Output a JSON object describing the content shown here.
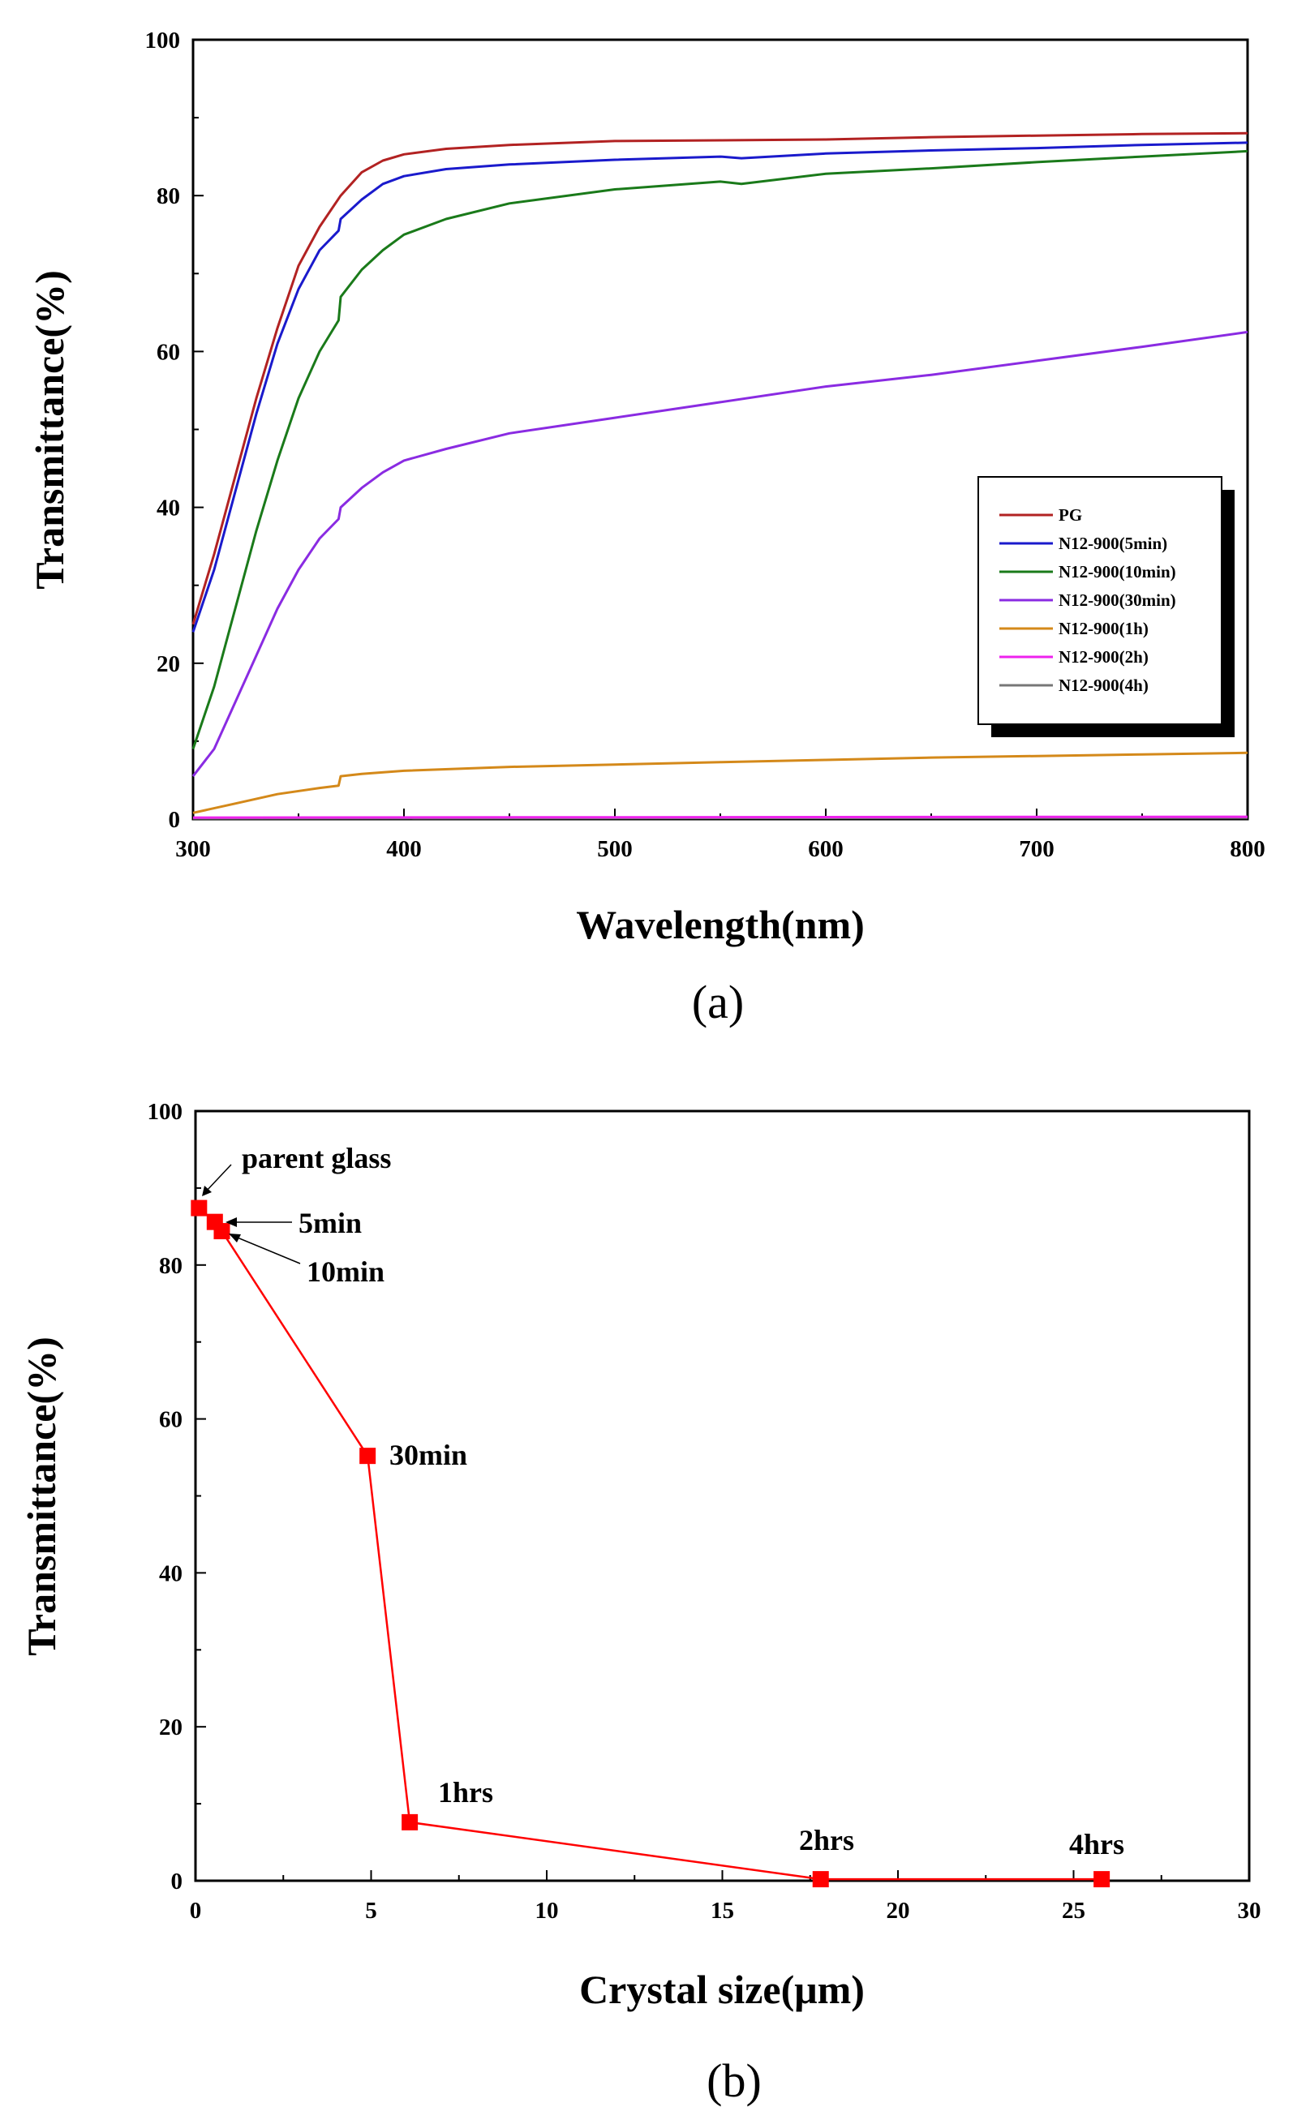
{
  "chart_data": [
    {
      "type": "line",
      "panel_label": "(a)",
      "xlabel": "Wavelength(nm)",
      "ylabel": "Transmittance(%)",
      "xlim": [
        300,
        800
      ],
      "ylim": [
        0,
        100
      ],
      "xticks": [
        300,
        400,
        500,
        600,
        700,
        800
      ],
      "yticks": [
        0,
        20,
        40,
        60,
        80,
        100
      ],
      "grid": false,
      "legend_position": "middle-right",
      "series": [
        {
          "name": "PG",
          "color": "#b22222",
          "x": [
            300,
            310,
            320,
            330,
            340,
            350,
            360,
            370,
            380,
            390,
            400,
            420,
            450,
            500,
            550,
            600,
            650,
            700,
            750,
            800
          ],
          "y": [
            25,
            34,
            44,
            54,
            63,
            71,
            76,
            80,
            83,
            84.5,
            85.3,
            86,
            86.5,
            87,
            87.1,
            87.2,
            87.5,
            87.7,
            87.9,
            88
          ]
        },
        {
          "name": "N12-900(5min)",
          "color": "#1a1acc",
          "x": [
            300,
            310,
            320,
            330,
            340,
            350,
            360,
            369,
            370,
            380,
            390,
            400,
            420,
            450,
            500,
            550,
            560,
            600,
            650,
            700,
            750,
            800
          ],
          "y": [
            24,
            32,
            42,
            52,
            61,
            68,
            73,
            75.5,
            77,
            79.5,
            81.5,
            82.5,
            83.4,
            84,
            84.6,
            85,
            84.8,
            85.4,
            85.8,
            86.1,
            86.5,
            86.8
          ]
        },
        {
          "name": "N12-900(10min)",
          "color": "#1a7a1a",
          "x": [
            300,
            310,
            320,
            330,
            340,
            350,
            360,
            369,
            370,
            380,
            390,
            400,
            420,
            450,
            500,
            550,
            560,
            600,
            650,
            700,
            750,
            800
          ],
          "y": [
            9,
            17,
            27,
            37,
            46,
            54,
            60,
            64,
            67,
            70.5,
            73,
            75,
            77,
            79,
            80.8,
            81.8,
            81.5,
            82.8,
            83.5,
            84.3,
            85,
            85.7
          ]
        },
        {
          "name": "N12-900(30min)",
          "color": "#8a2be2",
          "x": [
            300,
            310,
            320,
            330,
            340,
            350,
            360,
            369,
            370,
            380,
            390,
            400,
            420,
            450,
            500,
            550,
            600,
            650,
            700,
            750,
            800
          ],
          "y": [
            5.5,
            9,
            15,
            21,
            27,
            32,
            36,
            38.5,
            40,
            42.5,
            44.5,
            46,
            47.5,
            49.5,
            51.5,
            53.5,
            55.5,
            57,
            58.8,
            60.6,
            62.5
          ]
        },
        {
          "name": "N12-900(1h)",
          "color": "#d4891a",
          "x": [
            300,
            320,
            340,
            360,
            369,
            370,
            380,
            400,
            450,
            500,
            550,
            600,
            650,
            700,
            750,
            800
          ],
          "y": [
            0.8,
            2,
            3.2,
            4,
            4.3,
            5.5,
            5.8,
            6.2,
            6.7,
            7,
            7.3,
            7.6,
            7.9,
            8.1,
            8.3,
            8.5
          ]
        },
        {
          "name": "N12-900(2h)",
          "color": "#ee22ee",
          "x": [
            300,
            800
          ],
          "y": [
            0.2,
            0.3
          ]
        },
        {
          "name": "N12-900(4h)",
          "color": "#777777",
          "x": [
            300,
            800
          ],
          "y": [
            0.1,
            0.2
          ]
        }
      ]
    },
    {
      "type": "line",
      "panel_label": "(b)",
      "xlabel": "Crystal size(μm)",
      "ylabel": "Transmittance(%)",
      "xlim": [
        0,
        30
      ],
      "ylim": [
        0,
        100
      ],
      "xticks": [
        0,
        5,
        10,
        15,
        20,
        25,
        30
      ],
      "yticks": [
        0,
        20,
        40,
        60,
        80,
        100
      ],
      "grid": false,
      "series": [
        {
          "color": "#ff0000",
          "x": [
            0.1,
            0.55,
            0.75,
            4.9,
            6.1,
            17.8,
            25.8
          ],
          "y": [
            87.4,
            85.6,
            84.4,
            55.2,
            7.6,
            0.2,
            0.2
          ]
        }
      ],
      "annotations": [
        "parent glass",
        "5min",
        "10min",
        "30min",
        "1hrs",
        "2hrs",
        "4hrs"
      ]
    }
  ]
}
